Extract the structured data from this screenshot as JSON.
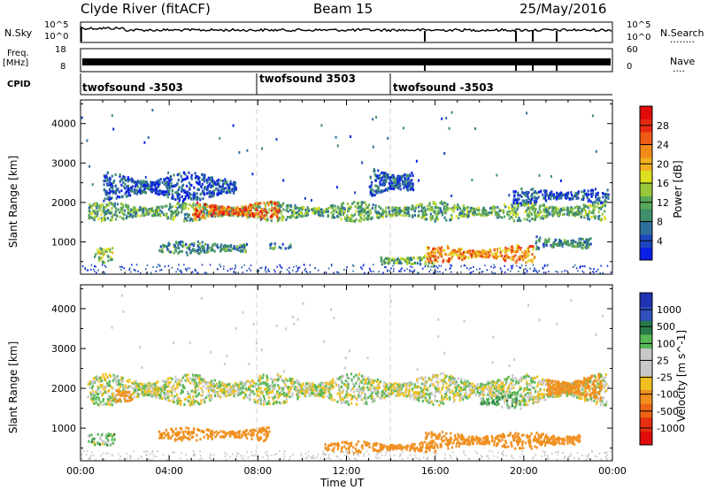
{
  "header": {
    "station": "Clyde River (fitACF)",
    "beam": "Beam 15",
    "date": "25/May/2016"
  },
  "strip_labels": {
    "nsky": "N.Sky",
    "nsearch": "N.Search",
    "nsearch_dots": "........",
    "freq_line1": "Freq.",
    "freq_line2": "[MHz]",
    "nave": "Nave",
    "nave_dots": "....",
    "cpid": "CPID"
  },
  "noise_ticks": {
    "top": "10^5",
    "bottom": "10^0",
    "right_top": "10^5",
    "right_bottom": "10^0"
  },
  "freq_ticks": {
    "top": "18",
    "bottom": "8",
    "right_top": "60",
    "right_bottom": "0"
  },
  "cpid_segments": [
    {
      "label": "twofsound -3503",
      "start_hr": 0.0
    },
    {
      "label": "twofsound 3503",
      "start_hr": 8.0
    },
    {
      "label": "twofsound -3503",
      "start_hr": 14.0
    }
  ],
  "chart_data": [
    {
      "type": "heatmap",
      "title": "Power",
      "ylabel": "Slant Range [km]",
      "xlabel": "Time UT",
      "x_ticks": [
        "00:00",
        "04:00",
        "08:00",
        "12:00",
        "16:00",
        "20:00",
        "00:00"
      ],
      "xlim_hr": [
        0,
        24
      ],
      "y_ticks": [
        1000,
        2000,
        3000,
        4000
      ],
      "ylim": [
        180,
        4600
      ],
      "colorbar": {
        "label": "Power [dB]",
        "ticks": [
          "4",
          "8",
          "12",
          "16",
          "20",
          "24",
          "28"
        ],
        "colors": [
          "#0a1ee6",
          "#1e46be",
          "#2f6f9c",
          "#3f8f6a",
          "#5aa85a",
          "#98c83a",
          "#dde020",
          "#f0b020",
          "#f08a18",
          "#ec5a14",
          "#e62a10",
          "#e00c0c"
        ]
      },
      "bands": [
        {
          "hr": [
            0.3,
            23.7
          ],
          "range": [
            1550,
            2050
          ],
          "value": 12
        },
        {
          "hr": [
            5.0,
            9.0
          ],
          "range": [
            1600,
            2050
          ],
          "value": 24
        },
        {
          "hr": [
            0.6,
            1.4
          ],
          "range": [
            500,
            900
          ],
          "value": 14
        },
        {
          "hr": [
            3.5,
            7.5
          ],
          "range": [
            700,
            1050
          ],
          "value": 10
        },
        {
          "hr": [
            8.5,
            9.5
          ],
          "range": [
            850,
            1000
          ],
          "value": 10
        },
        {
          "hr": [
            13.5,
            16.0
          ],
          "range": [
            400,
            700
          ],
          "value": 12
        },
        {
          "hr": [
            15.5,
            20.5
          ],
          "range": [
            500,
            950
          ],
          "value": 22
        },
        {
          "hr": [
            20.5,
            23.0
          ],
          "range": [
            800,
            1200
          ],
          "value": 10
        },
        {
          "hr": [
            1.0,
            7.0
          ],
          "range": [
            2050,
            2800
          ],
          "value": 6
        },
        {
          "hr": [
            13.0,
            15.0
          ],
          "range": [
            2100,
            3000
          ],
          "value": 7
        },
        {
          "hr": [
            19.5,
            23.8
          ],
          "range": [
            2000,
            2400
          ],
          "value": 6
        }
      ]
    },
    {
      "type": "heatmap",
      "title": "Velocity",
      "ylabel": "Slant Range [km]",
      "xlabel": "Time UT",
      "x_ticks": [
        "00:00",
        "04:00",
        "08:00",
        "12:00",
        "16:00",
        "20:00",
        "00:00"
      ],
      "xlim_hr": [
        0,
        24
      ],
      "y_ticks": [
        1000,
        2000,
        3000,
        4000
      ],
      "ylim": [
        180,
        4600
      ],
      "colorbar": {
        "label": "Velocity [m s^-1]",
        "ticks": [
          "1000",
          "500",
          "100",
          "25",
          "-25",
          "-100",
          "-500",
          "-1000"
        ],
        "colors": [
          "#1e32b4",
          "#3050be",
          "#2a7a4a",
          "#58b858",
          "#c8c8c8",
          "#c8c8c8",
          "#f0c020",
          "#f09020",
          "#ec6414",
          "#e63010",
          "#e00c0c"
        ]
      },
      "bands": [
        {
          "hr": [
            0.3,
            23.7
          ],
          "range": [
            1600,
            2400
          ],
          "value": 0
        },
        {
          "hr": [
            0.3,
            1.5
          ],
          "range": [
            600,
            900
          ],
          "value": 40
        },
        {
          "hr": [
            1.5,
            2.3
          ],
          "range": [
            1650,
            2000
          ],
          "value": -300
        },
        {
          "hr": [
            3.5,
            8.5
          ],
          "range": [
            700,
            1050
          ],
          "value": -200
        },
        {
          "hr": [
            11.0,
            16.0
          ],
          "range": [
            400,
            700
          ],
          "value": -300
        },
        {
          "hr": [
            15.5,
            22.5
          ],
          "range": [
            500,
            950
          ],
          "value": -400
        },
        {
          "hr": [
            21.0,
            23.5
          ],
          "range": [
            1700,
            2400
          ],
          "value": -350
        },
        {
          "hr": [
            18.0,
            20.0
          ],
          "range": [
            1500,
            1900
          ],
          "value": 60
        }
      ]
    }
  ]
}
